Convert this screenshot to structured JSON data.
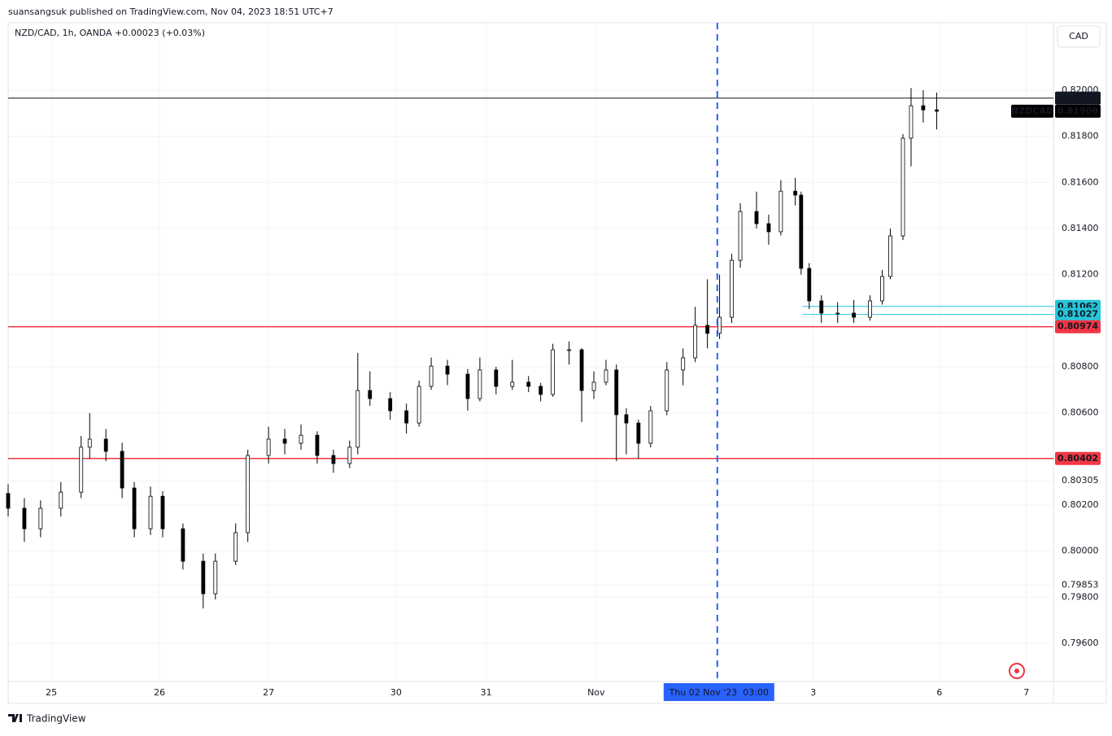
{
  "header": {
    "publisher": "suansangsuk published on TradingView.com, Nov 04, 2023 18:51 UTC+7",
    "symbol_info": "NZD/CAD, 1h, OANDA  +0.00023 (+0.03%)",
    "currency_button": "CAD"
  },
  "footer": {
    "brand": "TradingView"
  },
  "chart_data": {
    "type": "candlestick",
    "up_color": "#ffffff",
    "down_color": "#000000",
    "wick_color": "#000000",
    "xlim": [
      0,
      232
    ],
    "ylim": [
      0.79434,
      0.82293
    ],
    "grid": true,
    "xticks": [
      {
        "value": 9.6,
        "label": "25"
      },
      {
        "value": 33.6,
        "label": "26"
      },
      {
        "value": 57.8,
        "label": "27"
      },
      {
        "value": 86.1,
        "label": "30"
      },
      {
        "value": 106.1,
        "label": "31"
      },
      {
        "value": 130.5,
        "label": "Nov"
      },
      {
        "value": 178.7,
        "label": "3"
      },
      {
        "value": 206.7,
        "label": "6"
      },
      {
        "value": 226,
        "label": "7"
      }
    ],
    "yticks": [
      {
        "value": 0.82,
        "label": "0.82000"
      },
      {
        "value": 0.818,
        "label": "0.81800"
      },
      {
        "value": 0.816,
        "label": "0.81600"
      },
      {
        "value": 0.814,
        "label": "0.81400"
      },
      {
        "value": 0.812,
        "label": "0.81200"
      },
      {
        "value": 0.808,
        "label": "0.80800"
      },
      {
        "value": 0.806,
        "label": "0.80600"
      },
      0.80305,
      {
        "value": 0.802,
        "label": "0.80200"
      },
      {
        "value": 0.8,
        "label": "0.80000"
      },
      0.79853,
      {
        "value": 0.798,
        "label": "0.79800"
      },
      {
        "value": 0.796,
        "label": "0.79600"
      }
    ],
    "hlines": [
      {
        "value": 0.81966,
        "color": "#131722",
        "x0": 0
      },
      {
        "value": 0.81062,
        "color": "#26c6da",
        "x0": 176.3
      },
      {
        "value": 0.81027,
        "color": "#26c6da",
        "x0": 176.3
      },
      {
        "value": 0.80974,
        "color": "#f23645",
        "x0": 0
      },
      {
        "value": 0.80402,
        "color": "#f23645",
        "x0": 0
      }
    ],
    "last_price": {
      "symbol": "NZDCAD",
      "value": 0.81909
    },
    "crosshair": {
      "x": 157.4,
      "label": "Thu 02 Nov '23  03:00",
      "color": "#2962ff"
    },
    "candles": [
      {
        "x": 0,
        "o": 0.8025,
        "h": 0.8029,
        "l": 0.8015,
        "c": 0.80186
      },
      {
        "x": 3.6,
        "o": 0.80186,
        "h": 0.8023,
        "l": 0.8004,
        "c": 0.80097
      },
      {
        "x": 7.2,
        "o": 0.80097,
        "h": 0.8022,
        "l": 0.8006,
        "c": 0.80186
      },
      {
        "x": 11.7,
        "o": 0.80186,
        "h": 0.803,
        "l": 0.8015,
        "c": 0.80256
      },
      {
        "x": 16.2,
        "o": 0.80256,
        "h": 0.805,
        "l": 0.8023,
        "c": 0.80451
      },
      {
        "x": 18.1,
        "o": 0.80451,
        "h": 0.80599,
        "l": 0.804,
        "c": 0.80486
      },
      {
        "x": 21.7,
        "o": 0.80486,
        "h": 0.8053,
        "l": 0.8039,
        "c": 0.80433
      },
      {
        "x": 25.3,
        "o": 0.80433,
        "h": 0.8047,
        "l": 0.8023,
        "c": 0.80274
      },
      {
        "x": 28,
        "o": 0.80274,
        "h": 0.803,
        "l": 0.8006,
        "c": 0.80097
      },
      {
        "x": 31.6,
        "o": 0.80097,
        "h": 0.8028,
        "l": 0.8007,
        "c": 0.80238
      },
      {
        "x": 34.3,
        "o": 0.80238,
        "h": 0.8026,
        "l": 0.8006,
        "c": 0.80097
      },
      {
        "x": 38.8,
        "o": 0.80097,
        "h": 0.8012,
        "l": 0.7992,
        "c": 0.79956
      },
      {
        "x": 43.3,
        "o": 0.79956,
        "h": 0.7999,
        "l": 0.79751,
        "c": 0.79815
      },
      {
        "x": 46,
        "o": 0.79815,
        "h": 0.7999,
        "l": 0.7979,
        "c": 0.79956
      },
      {
        "x": 50.5,
        "o": 0.79956,
        "h": 0.8012,
        "l": 0.7994,
        "c": 0.8008
      },
      {
        "x": 53.2,
        "o": 0.8008,
        "h": 0.8044,
        "l": 0.8004,
        "c": 0.80415
      },
      {
        "x": 57.8,
        "o": 0.80415,
        "h": 0.8054,
        "l": 0.8038,
        "c": 0.80486
      },
      {
        "x": 61.4,
        "o": 0.80486,
        "h": 0.8053,
        "l": 0.8042,
        "c": 0.80468
      },
      {
        "x": 65,
        "o": 0.80468,
        "h": 0.8055,
        "l": 0.8044,
        "c": 0.80503
      },
      {
        "x": 68.6,
        "o": 0.80503,
        "h": 0.8052,
        "l": 0.8038,
        "c": 0.80415
      },
      {
        "x": 72.2,
        "o": 0.80415,
        "h": 0.8044,
        "l": 0.8034,
        "c": 0.8038
      },
      {
        "x": 75.8,
        "o": 0.8038,
        "h": 0.8048,
        "l": 0.8036,
        "c": 0.80451
      },
      {
        "x": 77.6,
        "o": 0.80451,
        "h": 0.8086,
        "l": 0.8042,
        "c": 0.80697
      },
      {
        "x": 80.3,
        "o": 0.80697,
        "h": 0.8078,
        "l": 0.8063,
        "c": 0.80662
      },
      {
        "x": 84.8,
        "o": 0.80662,
        "h": 0.8069,
        "l": 0.8057,
        "c": 0.80609
      },
      {
        "x": 88.4,
        "o": 0.80609,
        "h": 0.8064,
        "l": 0.8051,
        "c": 0.80556
      },
      {
        "x": 91.2,
        "o": 0.80556,
        "h": 0.8074,
        "l": 0.8054,
        "c": 0.80715
      },
      {
        "x": 93.9,
        "o": 0.80715,
        "h": 0.8084,
        "l": 0.807,
        "c": 0.80803
      },
      {
        "x": 97.5,
        "o": 0.80803,
        "h": 0.8083,
        "l": 0.8072,
        "c": 0.80768
      },
      {
        "x": 102,
        "o": 0.80768,
        "h": 0.8079,
        "l": 0.8061,
        "c": 0.80662
      },
      {
        "x": 104.7,
        "o": 0.80662,
        "h": 0.8084,
        "l": 0.8065,
        "c": 0.80786
      },
      {
        "x": 108.3,
        "o": 0.80786,
        "h": 0.808,
        "l": 0.8068,
        "c": 0.80715
      },
      {
        "x": 111.9,
        "o": 0.80715,
        "h": 0.8083,
        "l": 0.807,
        "c": 0.80733
      },
      {
        "x": 115.5,
        "o": 0.80733,
        "h": 0.8076,
        "l": 0.8069,
        "c": 0.80715
      },
      {
        "x": 118.2,
        "o": 0.80715,
        "h": 0.8073,
        "l": 0.8065,
        "c": 0.8068
      },
      {
        "x": 120.9,
        "o": 0.8068,
        "h": 0.809,
        "l": 0.8067,
        "c": 0.80874
      },
      {
        "x": 124.5,
        "o": 0.80874,
        "h": 0.8091,
        "l": 0.8081,
        "c": 0.80874
      },
      {
        "x": 127.3,
        "o": 0.80874,
        "h": 0.8088,
        "l": 0.8056,
        "c": 0.80697
      },
      {
        "x": 130,
        "o": 0.80697,
        "h": 0.8078,
        "l": 0.8066,
        "c": 0.80733
      },
      {
        "x": 132.7,
        "o": 0.80733,
        "h": 0.8083,
        "l": 0.8072,
        "c": 0.80786
      },
      {
        "x": 135,
        "o": 0.80786,
        "h": 0.8081,
        "l": 0.8039,
        "c": 0.80592
      },
      {
        "x": 137.2,
        "o": 0.80592,
        "h": 0.8062,
        "l": 0.8042,
        "c": 0.80556
      },
      {
        "x": 139.9,
        "o": 0.80556,
        "h": 0.8057,
        "l": 0.804,
        "c": 0.80468
      },
      {
        "x": 142.6,
        "o": 0.80468,
        "h": 0.8063,
        "l": 0.8045,
        "c": 0.80609
      },
      {
        "x": 146.2,
        "o": 0.80609,
        "h": 0.8082,
        "l": 0.8059,
        "c": 0.80786
      },
      {
        "x": 149.8,
        "o": 0.80786,
        "h": 0.8088,
        "l": 0.8072,
        "c": 0.80839
      },
      {
        "x": 152.5,
        "o": 0.80839,
        "h": 0.8106,
        "l": 0.8082,
        "c": 0.8098
      },
      {
        "x": 155.2,
        "o": 0.8098,
        "h": 0.8118,
        "l": 0.8088,
        "c": 0.80945
      },
      {
        "x": 157.9,
        "o": 0.80945,
        "h": 0.812,
        "l": 0.8092,
        "c": 0.81015
      },
      {
        "x": 160.6,
        "o": 0.81015,
        "h": 0.8129,
        "l": 0.8099,
        "c": 0.81262
      },
      {
        "x": 162.5,
        "o": 0.81262,
        "h": 0.8151,
        "l": 0.8123,
        "c": 0.81474
      },
      {
        "x": 166.1,
        "o": 0.81474,
        "h": 0.8156,
        "l": 0.814,
        "c": 0.81421
      },
      {
        "x": 168.8,
        "o": 0.81421,
        "h": 0.8146,
        "l": 0.8133,
        "c": 0.81386
      },
      {
        "x": 171.5,
        "o": 0.81386,
        "h": 0.8161,
        "l": 0.8137,
        "c": 0.81562
      },
      {
        "x": 174.7,
        "o": 0.81562,
        "h": 0.8162,
        "l": 0.815,
        "c": 0.81545
      },
      {
        "x": 176,
        "o": 0.81545,
        "h": 0.8156,
        "l": 0.812,
        "c": 0.81227
      },
      {
        "x": 177.8,
        "o": 0.81227,
        "h": 0.8125,
        "l": 0.8105,
        "c": 0.81086
      },
      {
        "x": 180.5,
        "o": 0.81086,
        "h": 0.8111,
        "l": 0.8099,
        "c": 0.81033
      },
      {
        "x": 184.1,
        "o": 0.81033,
        "h": 0.8108,
        "l": 0.8099,
        "c": 0.81033
      },
      {
        "x": 187.7,
        "o": 0.81033,
        "h": 0.8109,
        "l": 0.8099,
        "c": 0.81015
      },
      {
        "x": 191.3,
        "o": 0.81015,
        "h": 0.8111,
        "l": 0.81,
        "c": 0.81086
      },
      {
        "x": 194,
        "o": 0.81086,
        "h": 0.8122,
        "l": 0.8107,
        "c": 0.81192
      },
      {
        "x": 195.8,
        "o": 0.81192,
        "h": 0.814,
        "l": 0.8118,
        "c": 0.81368
      },
      {
        "x": 198.6,
        "o": 0.81368,
        "h": 0.8181,
        "l": 0.8135,
        "c": 0.81792
      },
      {
        "x": 200.4,
        "o": 0.81792,
        "h": 0.8201,
        "l": 0.8167,
        "c": 0.81933
      },
      {
        "x": 203.1,
        "o": 0.81933,
        "h": 0.82,
        "l": 0.8186,
        "c": 0.81915
      },
      {
        "x": 206.1,
        "o": 0.81915,
        "h": 0.8199,
        "l": 0.8183,
        "c": 0.81909
      }
    ]
  }
}
